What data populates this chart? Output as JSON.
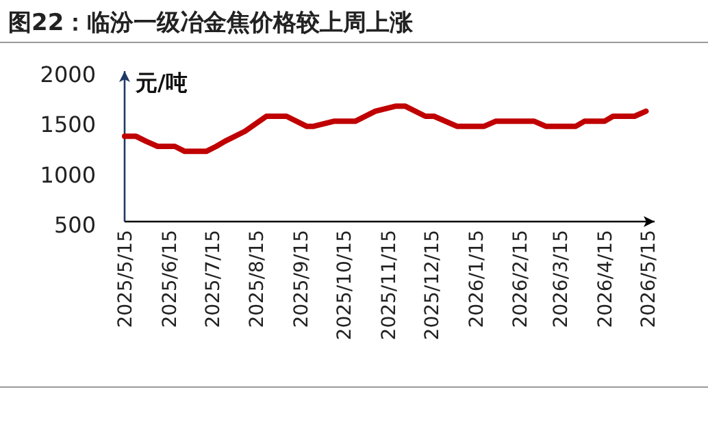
{
  "chart_data": {
    "type": "line",
    "title": "图22：临汾一级冶金焦价格较上周上涨",
    "ylabel": "元/吨",
    "x": [
      "2025-05-15",
      "2025-05-23",
      "2025-05-30",
      "2025-06-07",
      "2025-06-19",
      "2025-06-26",
      "2025-07-11",
      "2025-07-18",
      "2025-07-24",
      "2025-08-07",
      "2025-08-22",
      "2025-09-05",
      "2025-09-19",
      "2025-09-24",
      "2025-10-08",
      "2025-10-23",
      "2025-11-06",
      "2025-11-20",
      "2025-11-27",
      "2025-12-11",
      "2025-12-17",
      "2026-01-02",
      "2026-01-21",
      "2026-01-29",
      "2026-02-25",
      "2026-03-05",
      "2026-03-26",
      "2026-04-01",
      "2026-04-15",
      "2026-04-21",
      "2026-05-06",
      "2026-05-14"
    ],
    "series": [
      {
        "color": "#c00000",
        "values": [
          1350,
          1350,
          1300,
          1250,
          1250,
          1200,
          1200,
          1250,
          1300,
          1400,
          1550,
          1550,
          1450,
          1450,
          1500,
          1500,
          1600,
          1650,
          1650,
          1550,
          1550,
          1450,
          1450,
          1500,
          1500,
          1450,
          1450,
          1500,
          1500,
          1550,
          1550,
          1600
        ]
      }
    ],
    "xlim": [
      "2025-05-15",
      "2026-05-20"
    ],
    "ylim": [
      500,
      2000
    ],
    "yticks": [
      500,
      1000,
      1500,
      2000
    ],
    "xticks": [
      {
        "value": "2025-05-15",
        "label": "2025/5/15"
      },
      {
        "value": "2025-06-15",
        "label": "2025/6/15"
      },
      {
        "value": "2025-07-15",
        "label": "2025/7/15"
      },
      {
        "value": "2025-08-15",
        "label": "2025/8/15"
      },
      {
        "value": "2025-09-15",
        "label": "2025/9/15"
      },
      {
        "value": "2025-10-15",
        "label": "2025/10/15"
      },
      {
        "value": "2025-11-15",
        "label": "2025/11/15"
      },
      {
        "value": "2025-12-15",
        "label": "2025/12/15"
      },
      {
        "value": "2026-01-15",
        "label": "2026/1/15"
      },
      {
        "value": "2026-02-15",
        "label": "2026/2/15"
      },
      {
        "value": "2026-03-15",
        "label": "2026/3/15"
      },
      {
        "value": "2026-04-15",
        "label": "2026/4/15"
      },
      {
        "value": "2026-05-15",
        "label": "2026/5/15"
      }
    ]
  }
}
